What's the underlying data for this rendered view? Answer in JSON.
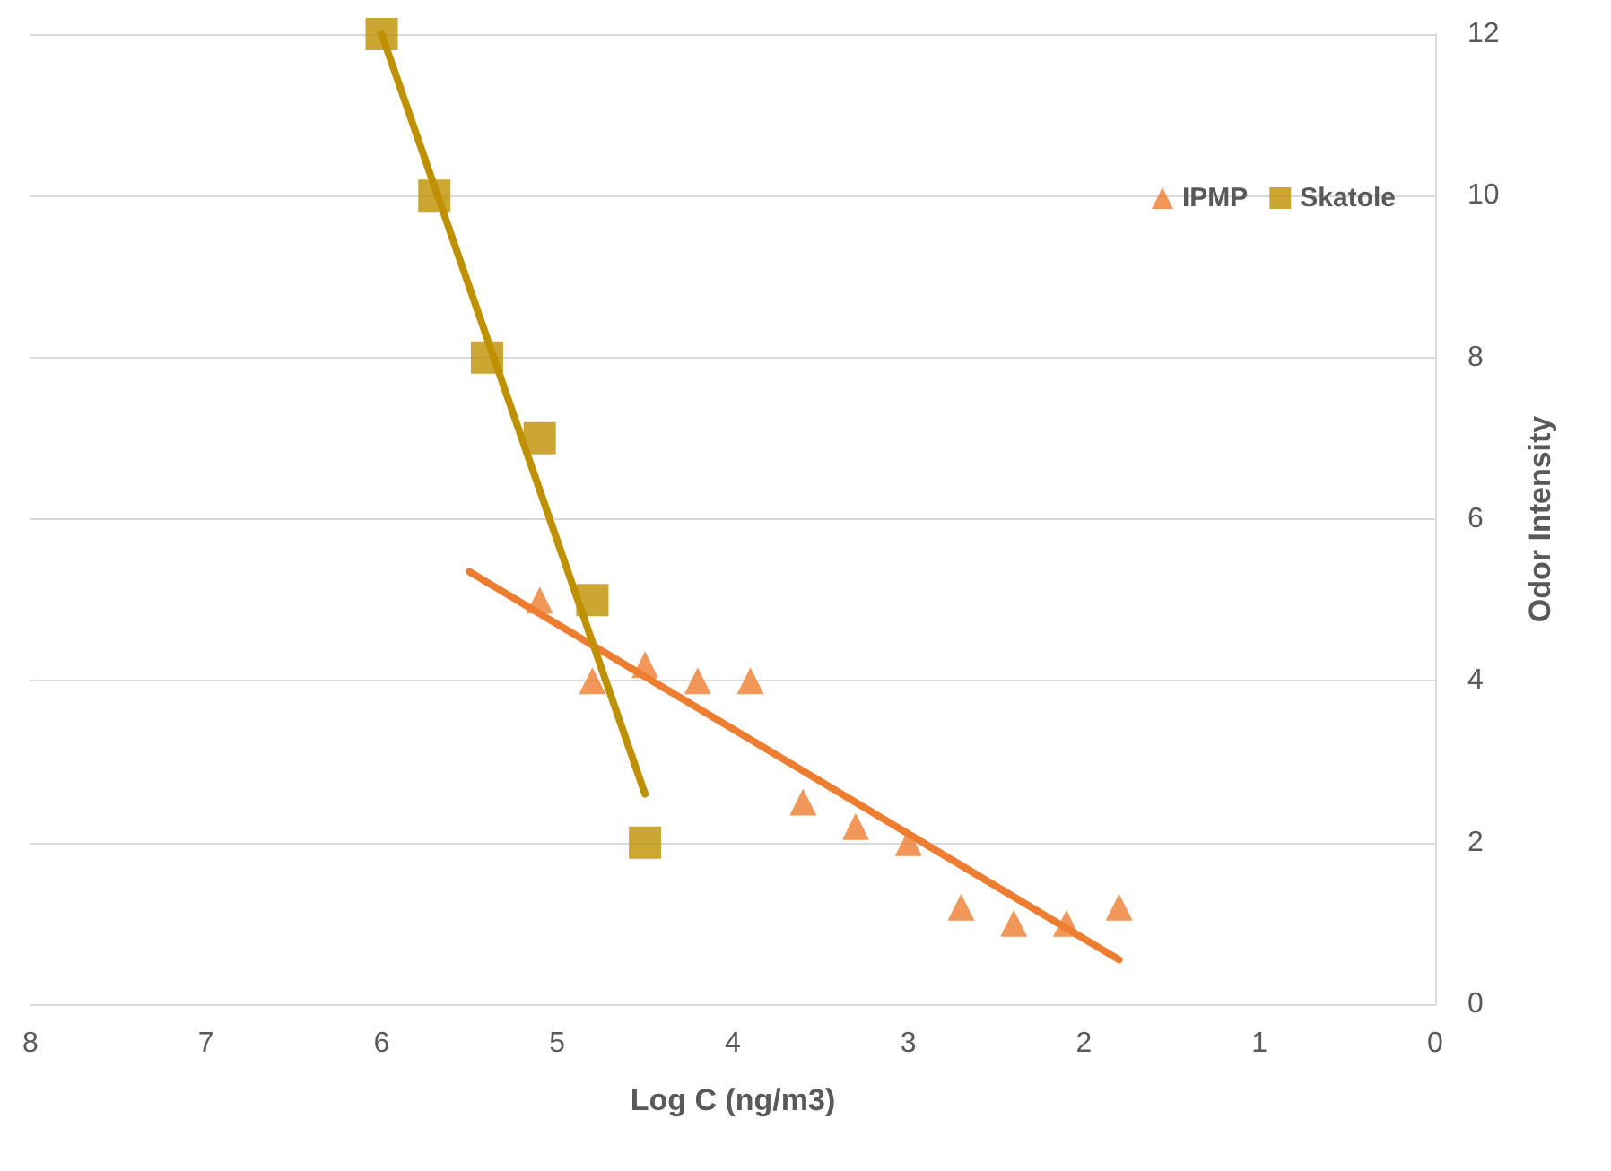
{
  "chart_data": {
    "type": "scatter",
    "xlabel": "Log C (ng/m3)",
    "ylabel": "Odor Intensity",
    "xlim": [
      8,
      0
    ],
    "xticks": [
      0,
      1,
      2,
      3,
      4,
      5,
      6,
      7,
      8
    ],
    "ylim": [
      0,
      12
    ],
    "yticks": [
      0,
      2,
      4,
      6,
      8,
      10,
      12
    ],
    "grid": "y",
    "legend": "top right",
    "series": [
      {
        "name": "IPMP",
        "type": "scatter",
        "marker": "triangle",
        "color": "#ed7d31",
        "x": [
          5.1,
          4.8,
          4.5,
          4.2,
          3.9,
          3.6,
          3.3,
          3.0,
          2.7,
          2.4,
          2.1,
          1.8
        ],
        "values": [
          5,
          4,
          4.2,
          4,
          4,
          2.5,
          2.2,
          2,
          1.2,
          1,
          1,
          1.2
        ]
      },
      {
        "name": "Skatole",
        "type": "scatter",
        "marker": "square",
        "color": "#bf9000",
        "x": [
          6.0,
          5.7,
          5.4,
          5.1,
          4.8,
          4.5
        ],
        "values": [
          12,
          10,
          8,
          7,
          5,
          2
        ]
      },
      {
        "type": "line",
        "marker": "none",
        "line_style": "solid",
        "color": "#ed7d31",
        "x": [
          5.5,
          1.8
        ],
        "values": [
          5.35,
          0.55
        ]
      },
      {
        "type": "line",
        "marker": "none",
        "line_style": "solid",
        "color": "#bf9000",
        "x": [
          6.0,
          4.5
        ],
        "values": [
          12,
          2.6
        ]
      }
    ]
  }
}
